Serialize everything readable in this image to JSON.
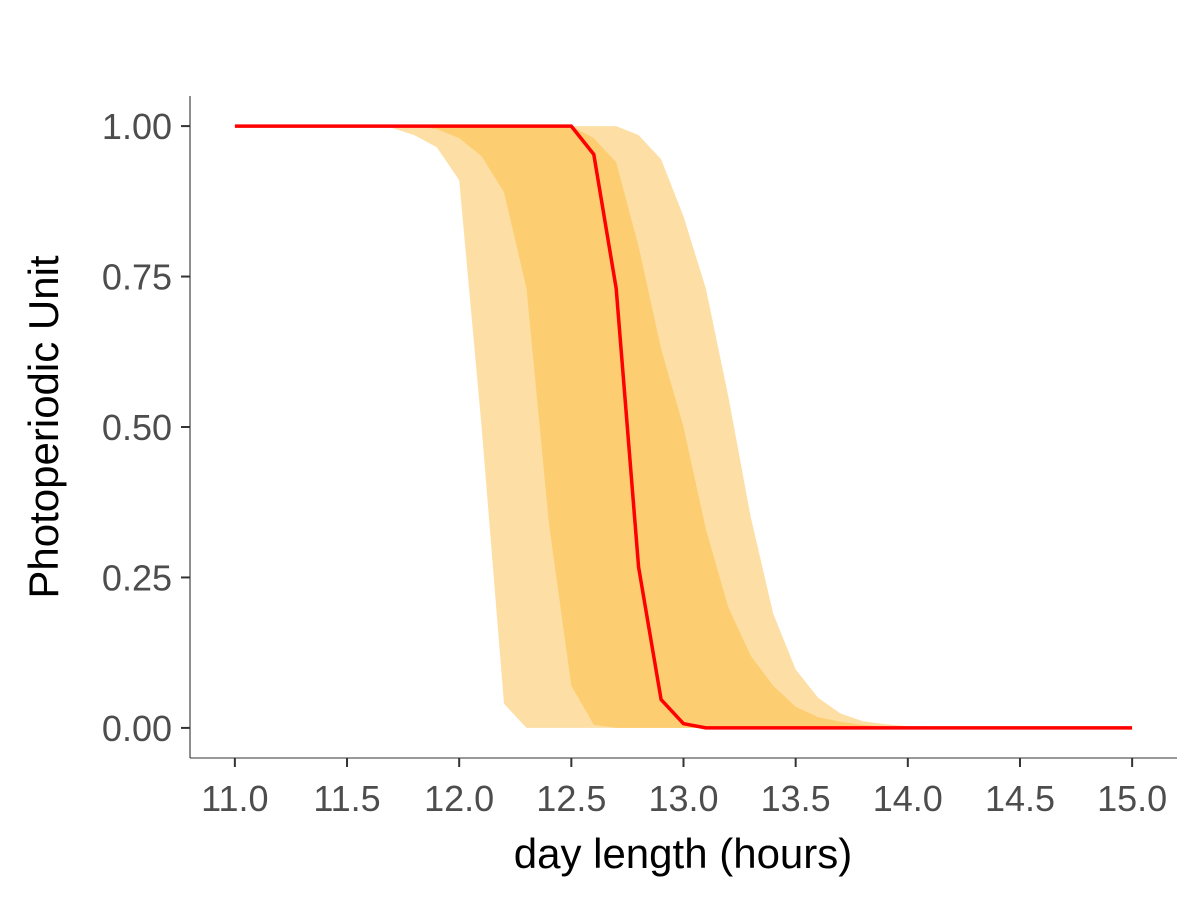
{
  "chart_data": {
    "type": "area",
    "xlabel": "day length (hours)",
    "ylabel": "Photoperiodic Unit",
    "xlim": [
      10.8,
      15.2
    ],
    "ylim": [
      -0.05,
      1.05
    ],
    "x_ticks": [
      "11.0",
      "11.5",
      "12.0",
      "12.5",
      "13.0",
      "13.5",
      "14.0",
      "14.5",
      "15.0"
    ],
    "y_ticks": [
      "0.00",
      "0.25",
      "0.50",
      "0.75",
      "1.00"
    ],
    "grid": false,
    "legend": "none",
    "colors": {
      "outer_band": "#fddfa5",
      "inner_band": "#fdcd72",
      "line": "#ff0000"
    },
    "bands": [
      {
        "level": "outer",
        "upper": {
          "x": [
            11.0,
            12.7,
            12.8,
            12.9,
            13.0,
            13.1,
            13.2,
            13.3,
            13.4,
            13.5,
            13.6,
            13.7,
            13.8,
            13.9,
            14.0,
            14.1,
            14.2,
            14.3,
            14.4,
            15.0
          ],
          "y": [
            1.0,
            1.0,
            0.985,
            0.945,
            0.85,
            0.73,
            0.55,
            0.35,
            0.19,
            0.097,
            0.05,
            0.024,
            0.011,
            0.006,
            0.003,
            0.0015,
            0.0008,
            0.0004,
            0.0002,
            0.0
          ]
        },
        "lower": {
          "x": [
            11.0,
            11.6,
            11.7,
            11.8,
            11.9,
            12.0,
            12.1,
            12.2,
            12.3,
            15.0
          ],
          "y": [
            1.0,
            1.0,
            0.997,
            0.985,
            0.965,
            0.91,
            0.5,
            0.04,
            0.0,
            0.0
          ]
        }
      },
      {
        "level": "inner",
        "upper": {
          "x": [
            11.0,
            12.5,
            12.6,
            12.7,
            12.8,
            12.9,
            13.0,
            13.1,
            13.2,
            13.3,
            13.4,
            13.5,
            13.6,
            13.7,
            13.8,
            13.9,
            14.0,
            14.1,
            15.0
          ],
          "y": [
            1.0,
            1.0,
            0.98,
            0.94,
            0.8,
            0.63,
            0.5,
            0.33,
            0.2,
            0.12,
            0.07,
            0.035,
            0.018,
            0.01,
            0.005,
            0.002,
            0.001,
            0.0,
            0.0
          ]
        },
        "lower": {
          "x": [
            11.0,
            11.8,
            11.9,
            12.0,
            12.1,
            12.2,
            12.3,
            12.4,
            12.5,
            12.6,
            12.7,
            15.0
          ],
          "y": [
            1.0,
            1.0,
            0.995,
            0.98,
            0.95,
            0.89,
            0.73,
            0.34,
            0.07,
            0.005,
            0.0,
            0.0
          ]
        }
      }
    ],
    "series": [
      {
        "x": [
          11.0,
          12.5,
          12.6,
          12.7,
          12.8,
          12.9,
          13.0,
          13.1,
          13.2,
          15.0
        ],
        "y": [
          1.0,
          1.0,
          0.953,
          0.73,
          0.267,
          0.047,
          0.007,
          0.0,
          0.0,
          0.0
        ]
      }
    ]
  }
}
